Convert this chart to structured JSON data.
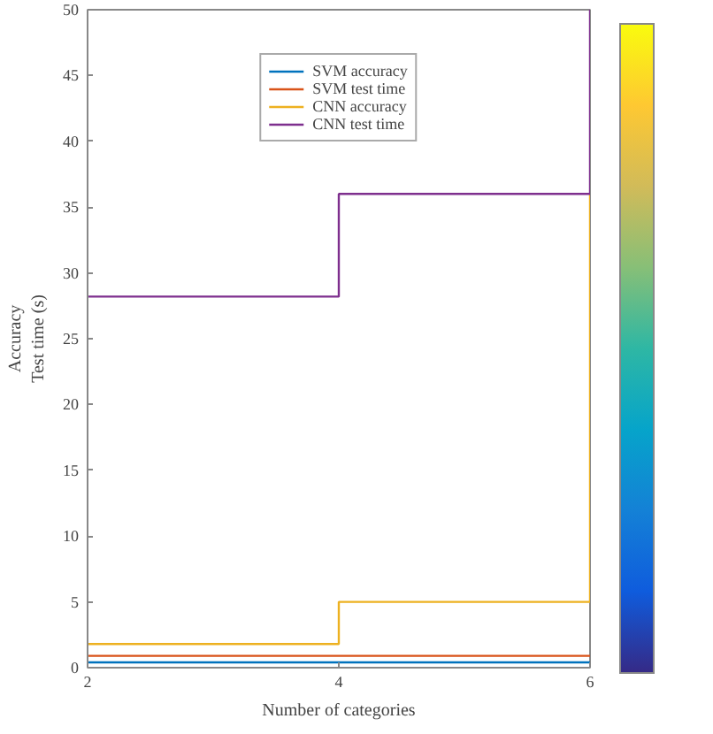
{
  "chart_data": {
    "type": "step",
    "xlabel": "Number of categories",
    "ylabel": "Accuracy\nTest time (s)",
    "x": [
      2,
      4,
      6
    ],
    "xlim": [
      2,
      6
    ],
    "xticks": [
      2,
      4,
      6
    ],
    "ylim": [
      0,
      50
    ],
    "yticks": [
      0,
      5,
      10,
      15,
      20,
      25,
      30,
      35,
      40,
      45,
      50
    ],
    "legend": "top",
    "series": [
      {
        "name": "SVM accuracy",
        "color": "#0072bd",
        "values": [
          0.4,
          0.4,
          0.4
        ]
      },
      {
        "name": "SVM test time",
        "color": "#d95319",
        "values": [
          0.9,
          0.9,
          0.9
        ]
      },
      {
        "name": "CNN accuracy",
        "color": "#edb120",
        "values": [
          1.8,
          5,
          36
        ]
      },
      {
        "name": "CNN test time",
        "color": "#7e2f8e",
        "values": [
          28.2,
          36,
          50
        ]
      }
    ]
  }
}
